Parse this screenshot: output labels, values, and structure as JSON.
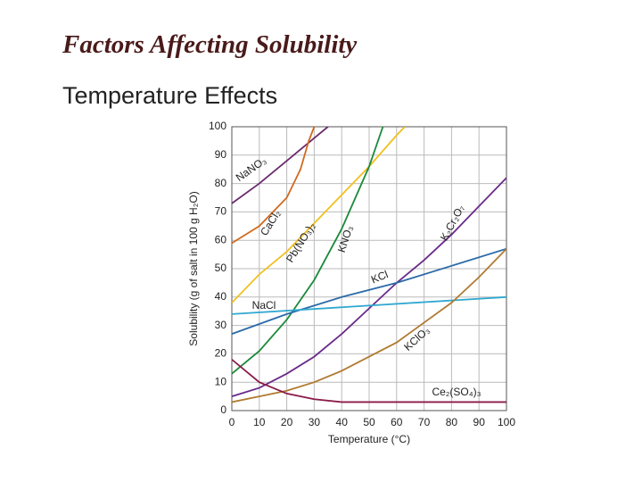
{
  "title": "Factors Affecting Solubility",
  "subtitle": "Temperature Effects",
  "chart_data": {
    "type": "line",
    "x_label": "Temperature (°C)",
    "y_label": "Solubility (g of salt in 100 g H₂O)",
    "xlim": [
      0,
      100
    ],
    "ylim": [
      0,
      100
    ],
    "xticks": [
      0,
      10,
      20,
      30,
      40,
      50,
      60,
      70,
      80,
      90,
      100
    ],
    "yticks": [
      0,
      10,
      20,
      30,
      40,
      50,
      60,
      70,
      80,
      90,
      100
    ],
    "grid": true,
    "series": [
      {
        "name": "NaNO₃",
        "color": "#6b2a6b",
        "x": [
          0,
          10,
          20,
          30,
          35
        ],
        "values": [
          73,
          80,
          88,
          96,
          100
        ]
      },
      {
        "name": "CaCl₂",
        "color": "#d2691e",
        "x": [
          0,
          10,
          20,
          25,
          28,
          30
        ],
        "values": [
          59,
          65,
          75,
          85,
          95,
          100
        ]
      },
      {
        "name": "Pb(NO₃)₂",
        "color": "#f0c020",
        "x": [
          0,
          10,
          20,
          30,
          40,
          50,
          60,
          63
        ],
        "values": [
          38,
          48,
          56,
          66,
          76,
          86,
          97,
          100
        ]
      },
      {
        "name": "KNO₃",
        "color": "#1a8a3a",
        "x": [
          0,
          10,
          20,
          30,
          40,
          50,
          55
        ],
        "values": [
          13,
          21,
          32,
          46,
          64,
          86,
          100
        ]
      },
      {
        "name": "K₂Cr₂O₇",
        "color": "#6a2a8a",
        "x": [
          0,
          10,
          20,
          30,
          40,
          50,
          60,
          70,
          80,
          90,
          100
        ],
        "values": [
          5,
          8,
          13,
          19,
          27,
          36,
          45,
          53,
          62,
          72,
          82
        ]
      },
      {
        "name": "KCl",
        "color": "#2a6aa8",
        "x": [
          0,
          20,
          40,
          60,
          80,
          100
        ],
        "values": [
          27,
          34,
          40,
          45,
          51,
          57
        ]
      },
      {
        "name": "NaCl",
        "color": "#30a8d0",
        "x": [
          0,
          100
        ],
        "values": [
          34,
          40
        ]
      },
      {
        "name": "KClO₃",
        "color": "#b07a30",
        "x": [
          0,
          10,
          20,
          30,
          40,
          50,
          60,
          70,
          80,
          90,
          100
        ],
        "values": [
          3,
          5,
          7,
          10,
          14,
          19,
          24,
          31,
          38,
          47,
          57
        ]
      },
      {
        "name": "Ce₂(SO₄)₃",
        "color": "#8a1a4a",
        "x": [
          0,
          10,
          20,
          30,
          40,
          100
        ],
        "values": [
          18,
          10,
          6,
          4,
          3,
          3
        ]
      }
    ]
  }
}
